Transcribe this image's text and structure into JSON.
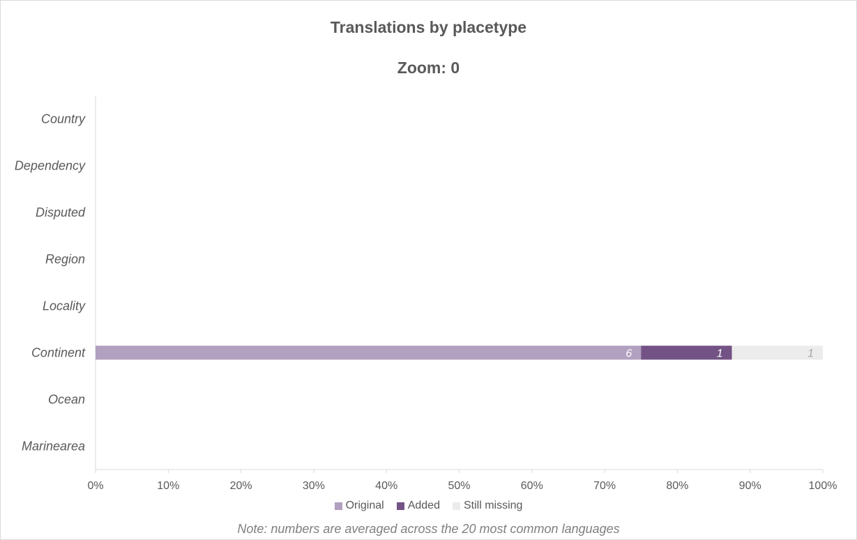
{
  "chart_data": {
    "type": "bar",
    "orientation": "horizontal",
    "stacked": "percent",
    "title": "Translations by placetype",
    "subtitle": "Zoom: 0",
    "categories": [
      "Country",
      "Dependency",
      "Disputed",
      "Region",
      "Locality",
      "Continent",
      "Ocean",
      "Marinearea"
    ],
    "series": [
      {
        "name": "Original",
        "color": "#b1a0bf",
        "label_color": "#ffffff",
        "values": [
          null,
          null,
          null,
          null,
          null,
          6,
          null,
          null
        ]
      },
      {
        "name": "Added",
        "color": "#735385",
        "label_color": "#ffffff",
        "values": [
          null,
          null,
          null,
          null,
          null,
          1,
          null,
          null
        ]
      },
      {
        "name": "Still missing",
        "color": "#ececec",
        "label_color": "#a6a6a6",
        "values": [
          null,
          null,
          null,
          null,
          null,
          1,
          null,
          null
        ]
      }
    ],
    "x_ticks": [
      "0%",
      "10%",
      "20%",
      "30%",
      "40%",
      "50%",
      "60%",
      "70%",
      "80%",
      "90%",
      "100%"
    ],
    "xlim": [
      0,
      1
    ],
    "grid": false,
    "legend_position": "bottom",
    "note": "Note: numbers are averaged across the 20 most common languages"
  }
}
